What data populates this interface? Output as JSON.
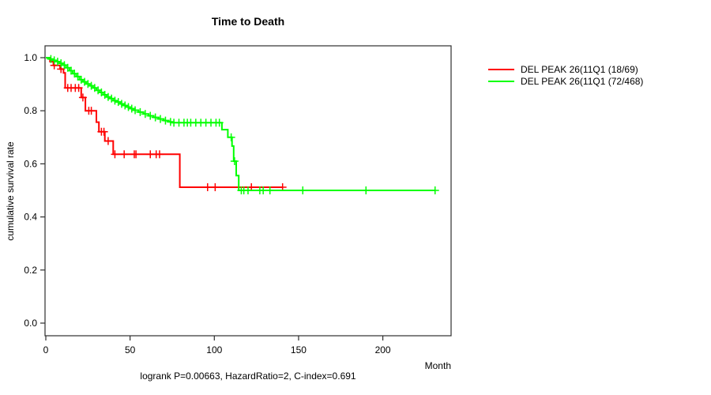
{
  "chart_data": {
    "type": "line",
    "subtype": "kaplan-meier-step-curves",
    "title": "Time to Death",
    "xlabel": "Month",
    "ylabel": "cumulative survival rate",
    "annotation": "logrank P=0.00663, HazardRatio=2, C-index=0.691",
    "xlim": [
      0,
      241
    ],
    "ylim": [
      0,
      1
    ],
    "grid": false,
    "legend_position": "right-outside",
    "xticks": [
      {
        "v": 0,
        "label": "0"
      },
      {
        "v": 50,
        "label": "50"
      },
      {
        "v": 100,
        "label": "100"
      },
      {
        "v": 150,
        "label": "150"
      },
      {
        "v": 200,
        "label": "200"
      }
    ],
    "yticks": [
      {
        "v": 0.0,
        "label": "0.0"
      },
      {
        "v": 0.2,
        "label": "0.2"
      },
      {
        "v": 0.4,
        "label": "0.4"
      },
      {
        "v": 0.6,
        "label": "0.6"
      },
      {
        "v": 0.8,
        "label": "0.8"
      },
      {
        "v": 1.0,
        "label": "1.0"
      }
    ],
    "series": [
      {
        "name": "DEL PEAK 26(11Q1 (18/69)",
        "color": "#ff0000",
        "steps": [
          [
            0,
            1.0
          ],
          [
            2.5,
            0.985
          ],
          [
            4.5,
            0.971
          ],
          [
            8.5,
            0.957
          ],
          [
            10.5,
            0.943
          ],
          [
            11.5,
            0.886
          ],
          [
            21,
            0.85
          ],
          [
            23.5,
            0.8
          ],
          [
            30,
            0.757
          ],
          [
            31.5,
            0.721
          ],
          [
            35,
            0.686
          ],
          [
            40,
            0.636
          ],
          [
            79.5,
            0.512
          ],
          [
            140.5,
            0.512
          ]
        ],
        "censors": [
          [
            5,
            0.971
          ],
          [
            9,
            0.957
          ],
          [
            13,
            0.886
          ],
          [
            15,
            0.886
          ],
          [
            17.5,
            0.886
          ],
          [
            19.5,
            0.886
          ],
          [
            22,
            0.85
          ],
          [
            25.5,
            0.8
          ],
          [
            27,
            0.8
          ],
          [
            33,
            0.721
          ],
          [
            34.5,
            0.721
          ],
          [
            37,
            0.686
          ],
          [
            41,
            0.636
          ],
          [
            46.5,
            0.636
          ],
          [
            52.5,
            0.636
          ],
          [
            53.5,
            0.636
          ],
          [
            62,
            0.636
          ],
          [
            65.5,
            0.636
          ],
          [
            67.5,
            0.636
          ],
          [
            96,
            0.512
          ],
          [
            100.5,
            0.512
          ],
          [
            122,
            0.512
          ],
          [
            140.5,
            0.512
          ]
        ]
      },
      {
        "name": "DEL PEAK 26(11Q1 (72/468)",
        "color": "#00ff00",
        "steps": [
          [
            0,
            1.0
          ],
          [
            2,
            0.995
          ],
          [
            4,
            0.99
          ],
          [
            6,
            0.985
          ],
          [
            8,
            0.979
          ],
          [
            10,
            0.972
          ],
          [
            12,
            0.962
          ],
          [
            14,
            0.951
          ],
          [
            16,
            0.94
          ],
          [
            18,
            0.929
          ],
          [
            20,
            0.917
          ],
          [
            22,
            0.909
          ],
          [
            24,
            0.901
          ],
          [
            26,
            0.894
          ],
          [
            28,
            0.886
          ],
          [
            30,
            0.877
          ],
          [
            32,
            0.869
          ],
          [
            34,
            0.86
          ],
          [
            36,
            0.852
          ],
          [
            38,
            0.846
          ],
          [
            40,
            0.838
          ],
          [
            42,
            0.833
          ],
          [
            44,
            0.826
          ],
          [
            46,
            0.82
          ],
          [
            48,
            0.814
          ],
          [
            50,
            0.808
          ],
          [
            52,
            0.802
          ],
          [
            55,
            0.795
          ],
          [
            58,
            0.788
          ],
          [
            61,
            0.781
          ],
          [
            64,
            0.775
          ],
          [
            67,
            0.769
          ],
          [
            70,
            0.763
          ],
          [
            73,
            0.758
          ],
          [
            75,
            0.755
          ],
          [
            104.5,
            0.729
          ],
          [
            108,
            0.7
          ],
          [
            110.5,
            0.667
          ],
          [
            111.5,
            0.61
          ],
          [
            113,
            0.556
          ],
          [
            114.5,
            0.5
          ],
          [
            231,
            0.5
          ]
        ],
        "censors": [
          [
            3,
            0.995
          ],
          [
            5,
            0.99
          ],
          [
            7,
            0.985
          ],
          [
            9,
            0.979
          ],
          [
            11,
            0.972
          ],
          [
            13,
            0.962
          ],
          [
            15,
            0.951
          ],
          [
            17,
            0.94
          ],
          [
            19,
            0.929
          ],
          [
            21,
            0.917
          ],
          [
            23,
            0.909
          ],
          [
            25,
            0.901
          ],
          [
            27,
            0.894
          ],
          [
            29,
            0.886
          ],
          [
            31,
            0.877
          ],
          [
            33,
            0.869
          ],
          [
            35,
            0.86
          ],
          [
            37,
            0.852
          ],
          [
            39,
            0.846
          ],
          [
            41,
            0.838
          ],
          [
            43,
            0.833
          ],
          [
            45,
            0.826
          ],
          [
            47,
            0.82
          ],
          [
            49,
            0.814
          ],
          [
            51,
            0.808
          ],
          [
            53,
            0.802
          ],
          [
            56,
            0.795
          ],
          [
            59,
            0.788
          ],
          [
            62,
            0.781
          ],
          [
            65,
            0.775
          ],
          [
            68,
            0.769
          ],
          [
            71,
            0.763
          ],
          [
            74,
            0.758
          ],
          [
            76,
            0.755
          ],
          [
            79,
            0.755
          ],
          [
            82,
            0.755
          ],
          [
            84,
            0.755
          ],
          [
            86,
            0.755
          ],
          [
            89,
            0.755
          ],
          [
            92,
            0.755
          ],
          [
            95,
            0.755
          ],
          [
            98,
            0.755
          ],
          [
            101,
            0.755
          ],
          [
            103,
            0.755
          ],
          [
            110,
            0.7
          ],
          [
            112,
            0.61
          ],
          [
            116,
            0.5
          ],
          [
            117.5,
            0.5
          ],
          [
            120,
            0.5
          ],
          [
            127,
            0.5
          ],
          [
            129,
            0.5
          ],
          [
            133,
            0.5
          ],
          [
            152.5,
            0.5
          ],
          [
            190,
            0.5
          ],
          [
            231,
            0.5
          ]
        ]
      }
    ],
    "colors": {
      "axis": "#2e2e2e",
      "text": "#000000"
    }
  }
}
